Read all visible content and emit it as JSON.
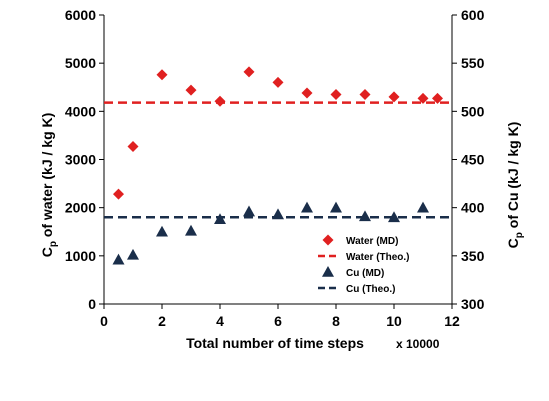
{
  "chart_data": {
    "type": "scatter",
    "xlabel": "Total number of time steps",
    "x_multiplier": "x 10000",
    "ylabel_left": {
      "main": "C",
      "sub": "p",
      "rest": " of  water (kJ / kg K)"
    },
    "ylabel_right": {
      "main": "C",
      "sub": "p",
      "rest": " of  Cu  (kJ / kg K)"
    },
    "xlim": [
      0,
      12
    ],
    "x_ticks": [
      0,
      2,
      4,
      6,
      8,
      10,
      12
    ],
    "ylim_left": [
      0,
      6000
    ],
    "y_ticks_left": [
      0,
      1000,
      2000,
      3000,
      4000,
      5000,
      6000
    ],
    "ylim_right": [
      300,
      600
    ],
    "y_ticks_right": [
      300,
      350,
      400,
      450,
      500,
      550,
      600
    ],
    "series": [
      {
        "name": "Water (MD)",
        "axis": "left",
        "marker": "diamond",
        "color": "#e02020",
        "x": [
          0.5,
          1,
          2,
          3,
          4,
          5,
          6,
          7,
          8,
          9,
          10,
          11,
          11.5
        ],
        "y": [
          2280,
          3270,
          4760,
          4440,
          4210,
          4820,
          4600,
          4380,
          4350,
          4350,
          4300,
          4270,
          4270
        ]
      },
      {
        "name": "Cu (MD)",
        "axis": "right",
        "marker": "triangle",
        "color": "#1a2e4a",
        "x": [
          0.5,
          1,
          2,
          3,
          4,
          5,
          6,
          7,
          8,
          9,
          10,
          11
        ],
        "y": [
          346,
          351,
          375,
          376,
          388,
          396,
          393,
          400,
          400,
          391,
          390,
          400
        ]
      }
    ],
    "reference_lines": [
      {
        "name": "Water (Theo.)",
        "axis": "left",
        "value": 4180,
        "color": "#e02020",
        "style": "dashed"
      },
      {
        "name": "Cu (Theo.)",
        "axis": "right",
        "value": 390,
        "color": "#1a2e4a",
        "style": "dashed"
      }
    ],
    "legend": {
      "position": "lower-right",
      "items": [
        "Water (MD)",
        "Water (Theo.)",
        "Cu (MD)",
        "Cu (Theo.)"
      ]
    },
    "grid": false
  }
}
